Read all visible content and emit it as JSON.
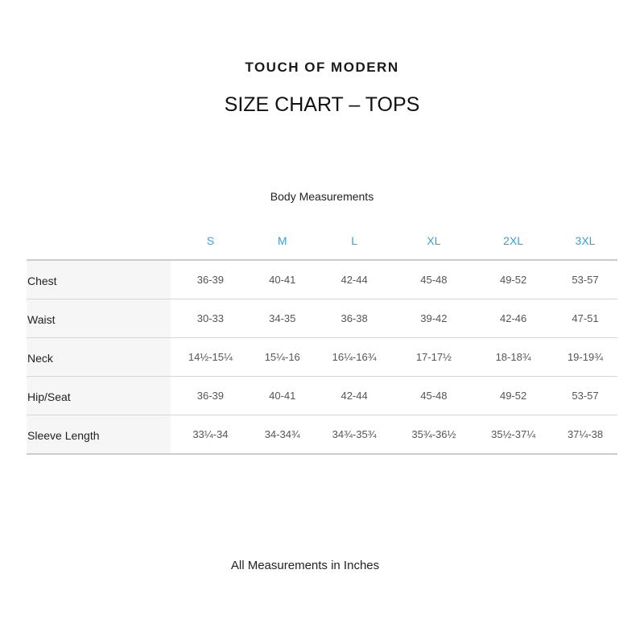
{
  "brand": "TOUCH OF MODERN",
  "title": "SIZE CHART – TOPS",
  "subtitle": "Body Measurements",
  "colors": {
    "size_header": "#3a9fd8"
  },
  "sizes": [
    "S",
    "M",
    "L",
    "XL",
    "2XL",
    "3XL"
  ],
  "rows": [
    {
      "label": "Chest",
      "values": [
        "36-39",
        "40-41",
        "42-44",
        "45-48",
        "49-52",
        "53-57"
      ]
    },
    {
      "label": "Waist",
      "values": [
        "30-33",
        "34-35",
        "36-38",
        "39-42",
        "42-46",
        "47-51"
      ]
    },
    {
      "label": "Neck",
      "values": [
        "14½-15¼",
        "15¼-16",
        "16¼-16¾",
        "17-17½",
        "18-18¾",
        "19-19¾"
      ]
    },
    {
      "label": "Hip/Seat",
      "values": [
        "36-39",
        "40-41",
        "42-44",
        "45-48",
        "49-52",
        "53-57"
      ]
    },
    {
      "label": "Sleeve Length",
      "values": [
        "33¼-34",
        "34-34¾",
        "34¾-35¾",
        "35¾-36½",
        "35½-37¼",
        "37¼-38"
      ]
    }
  ],
  "footer": "All Measurements in Inches"
}
